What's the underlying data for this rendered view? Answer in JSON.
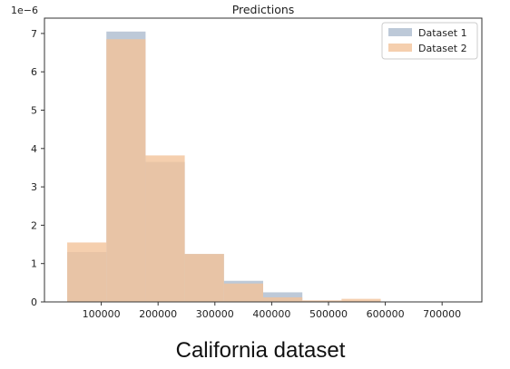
{
  "chart_data": {
    "type": "bar",
    "title": "Predictions",
    "xlabel": "",
    "ylabel": "",
    "y_offset_label": "1e−6",
    "xlim": [
      0,
      770000
    ],
    "ylim": [
      0,
      7.4
    ],
    "x_ticks": [
      {
        "value": 100000,
        "label": "100000"
      },
      {
        "value": 200000,
        "label": "200000"
      },
      {
        "value": 300000,
        "label": "300000"
      },
      {
        "value": 400000,
        "label": "400000"
      },
      {
        "value": 500000,
        "label": "500000"
      },
      {
        "value": 600000,
        "label": "600000"
      },
      {
        "value": 700000,
        "label": "700000"
      }
    ],
    "y_ticks": [
      {
        "value": 0,
        "label": "0"
      },
      {
        "value": 1,
        "label": "1"
      },
      {
        "value": 2,
        "label": "2"
      },
      {
        "value": 3,
        "label": "3"
      },
      {
        "value": 4,
        "label": "4"
      },
      {
        "value": 5,
        "label": "5"
      },
      {
        "value": 6,
        "label": "6"
      },
      {
        "value": 7,
        "label": "7"
      }
    ],
    "legend_position": "top-right",
    "bin_edges": [
      40000,
      109000,
      178000,
      247000,
      316000,
      385000,
      454000,
      523000,
      592000,
      661000,
      730000
    ],
    "series": [
      {
        "name": "Dataset 1",
        "color": "#b6c3d4",
        "opacity": 0.9,
        "values": [
          1.3,
          7.05,
          3.65,
          1.25,
          0.55,
          0.25,
          0.03,
          0.03,
          0.0,
          0.0
        ]
      },
      {
        "name": "Dataset 2",
        "color": "#f2c39a",
        "opacity": 0.8,
        "values": [
          1.55,
          6.85,
          3.82,
          1.25,
          0.48,
          0.12,
          0.04,
          0.08,
          0.0,
          0.0
        ]
      }
    ]
  },
  "caption": "California dataset"
}
